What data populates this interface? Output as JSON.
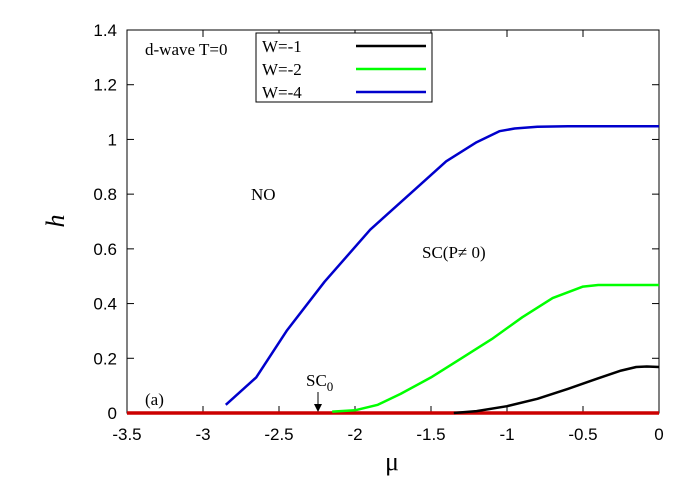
{
  "chart_data": {
    "type": "line",
    "xlabel": "μ",
    "ylabel": "h",
    "xlim": [
      -3.5,
      0
    ],
    "ylim": [
      0,
      1.4
    ],
    "xticks": [
      "-3.5",
      "-3",
      "-2.5",
      "-2",
      "-1.5",
      "-1",
      "-0.5",
      "0"
    ],
    "yticks": [
      "0",
      "0.2",
      "0.4",
      "0.6",
      "0.8",
      "1",
      "1.2",
      "1.4"
    ],
    "grid": false,
    "legend_position": "top-left",
    "annotations": {
      "condition": "d-wave T=0",
      "panel": "(a)",
      "phase_no": "NO",
      "phase_sc": "SC(P≠ 0)",
      "phase_sc0_main": "SC",
      "phase_sc0_sub": "0"
    },
    "series": [
      {
        "name": "W=-1",
        "color": "#000000",
        "x": [
          -1.35,
          -1.2,
          -1.0,
          -0.8,
          -0.6,
          -0.4,
          -0.25,
          -0.15,
          -0.08,
          0.0
        ],
        "y": [
          0.0,
          0.007,
          0.025,
          0.052,
          0.088,
          0.127,
          0.155,
          0.168,
          0.17,
          0.168
        ]
      },
      {
        "name": "W=-2",
        "color": "#00ff00",
        "x": [
          -2.15,
          -2.0,
          -1.85,
          -1.7,
          -1.5,
          -1.3,
          -1.1,
          -0.9,
          -0.7,
          -0.5,
          -0.4,
          -0.2,
          0.0
        ],
        "y": [
          0.005,
          0.01,
          0.03,
          0.07,
          0.13,
          0.2,
          0.27,
          0.35,
          0.42,
          0.462,
          0.468,
          0.468,
          0.468
        ]
      },
      {
        "name": "W=-4",
        "color": "#0000cc",
        "x": [
          -2.85,
          -2.65,
          -2.45,
          -2.2,
          -1.9,
          -1.6,
          -1.4,
          -1.2,
          -1.05,
          -0.95,
          -0.8,
          -0.6,
          -0.4,
          -0.2,
          0.0
        ],
        "y": [
          0.03,
          0.13,
          0.3,
          0.48,
          0.67,
          0.82,
          0.92,
          0.99,
          1.03,
          1.04,
          1.046,
          1.048,
          1.048,
          1.048,
          1.048
        ]
      },
      {
        "color": "#cc0000",
        "x": [
          -3.5,
          0.0
        ],
        "y": [
          0.0,
          0.0
        ]
      }
    ]
  }
}
